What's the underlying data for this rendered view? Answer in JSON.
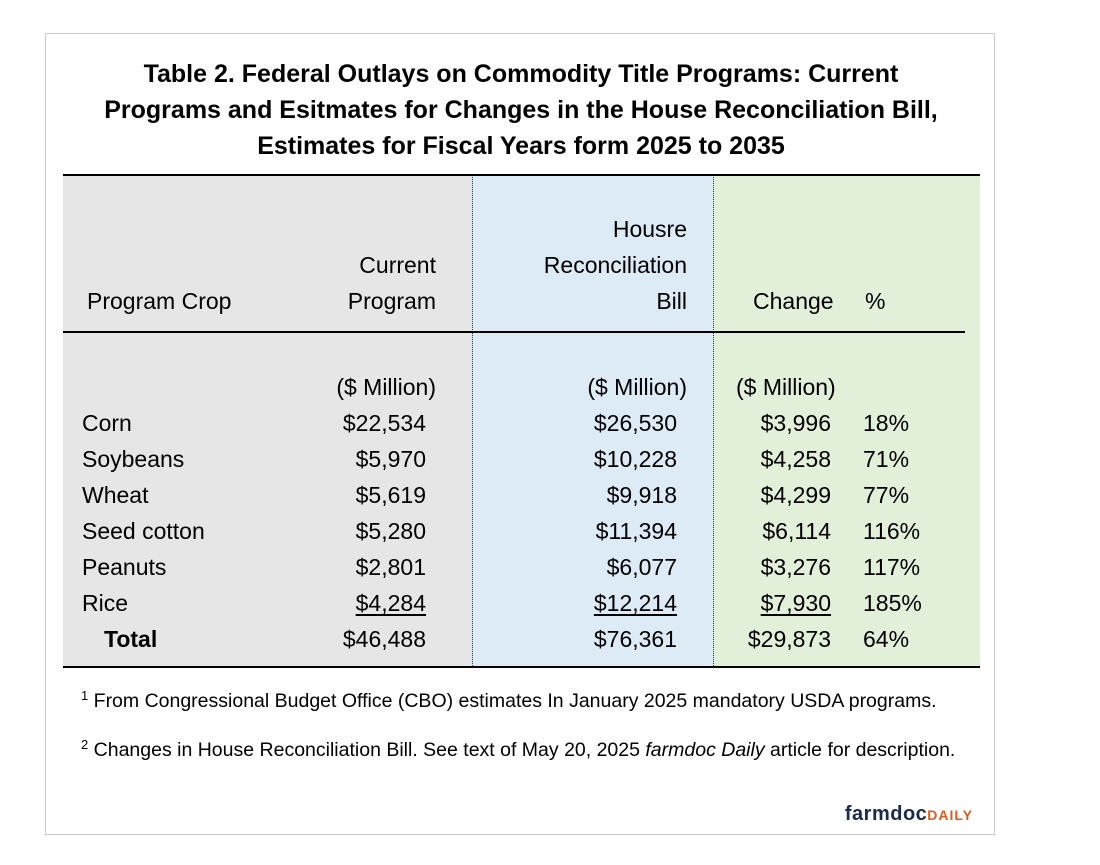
{
  "title": {
    "line1": "Table 2. Federal Outlays on Commodity Title Programs:  Current",
    "line2": "Programs and Esitmates for Changes in the House Reconciliation Bill,",
    "line3": "Estimates for Fiscal Years form 2025 to 2035"
  },
  "headers": {
    "crop": "Program Crop",
    "current_1": "Current",
    "current_2": "Program",
    "house_1": "Housre",
    "house_2": "Reconciliation",
    "house_3": "Bill",
    "change": "Change",
    "pct": "%"
  },
  "units": {
    "current": "($ Million)",
    "house": "($ Million)",
    "change": "($ Million)"
  },
  "rows": [
    {
      "crop": "Corn",
      "current": "$22,534",
      "house": "$26,530",
      "change": "$3,996",
      "pct": "18%"
    },
    {
      "crop": "Soybeans",
      "current": "$5,970",
      "house": "$10,228",
      "change": "$4,258",
      "pct": "71%"
    },
    {
      "crop": "Wheat",
      "current": "$5,619",
      "house": "$9,918",
      "change": "$4,299",
      "pct": "77%"
    },
    {
      "crop": "Seed cotton",
      "current": "$5,280",
      "house": "$11,394",
      "change": "$6,114",
      "pct": "116%"
    },
    {
      "crop": "Peanuts",
      "current": "$2,801",
      "house": "$6,077",
      "change": "$3,276",
      "pct": "117%"
    },
    {
      "crop": "Rice",
      "current": "$4,284",
      "house": "$12,214",
      "change": "$7,930",
      "pct": "185%"
    }
  ],
  "total": {
    "crop": "Total",
    "current": "$46,488",
    "house": "$76,361",
    "change": "$29,873",
    "pct": "64%"
  },
  "footnotes": {
    "note1_marker": "1",
    "note1_text": "From Congressional Budget Office (CBO) estimates In January 2025 mandatory USDA programs.",
    "note2_marker": "2",
    "note2_text_a": "Changes in House Reconciliation Bill. See text of May 20, 2025 ",
    "note2_italic": "farmdoc Daily",
    "note2_text_b": " article for description."
  },
  "logo": {
    "part1": "farmdoc",
    "part2": "DAILY"
  }
}
